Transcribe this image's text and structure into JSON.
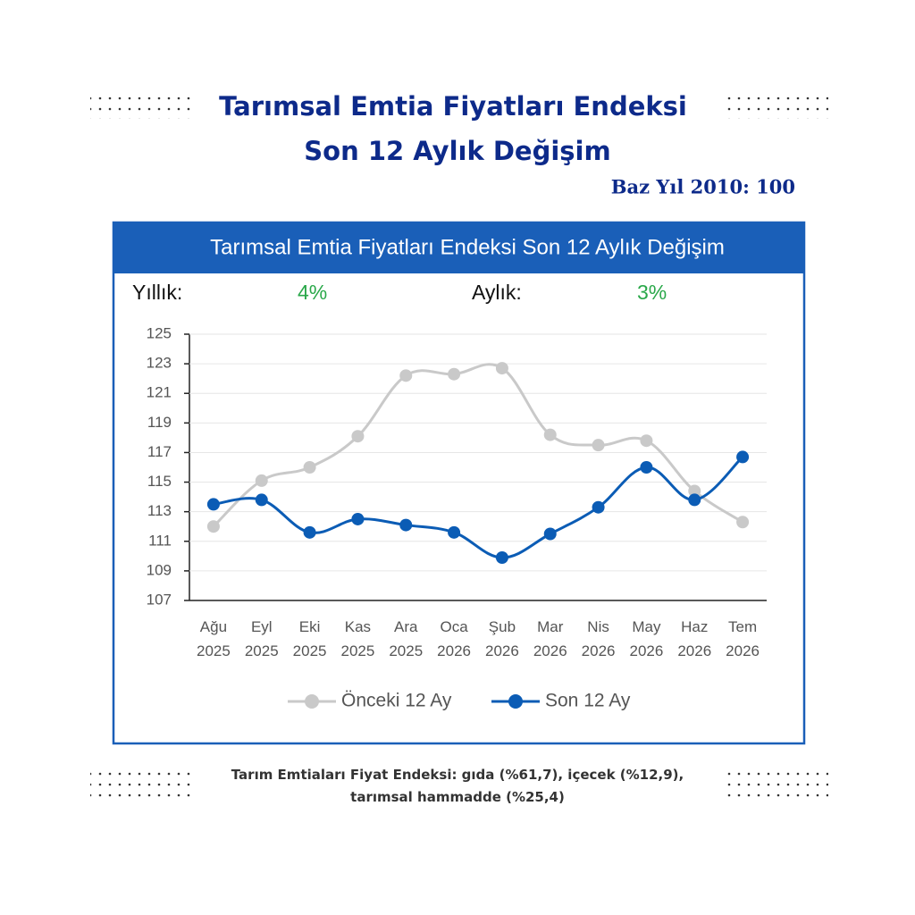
{
  "header": {
    "title_line1": "Tarımsal Emtia Fiyatları Endeksi",
    "title_line2": "Son 12 Aylık Değişim",
    "base_year": "Baz Yıl 2010: 100"
  },
  "stats": {
    "annual_label": "Yıllık:",
    "annual_value": "4%",
    "monthly_label": "Aylık:",
    "monthly_value": "3%"
  },
  "chart_data": {
    "type": "line",
    "title": "Tarımsal Emtia Fiyatları Endeksi Son 12 Aylık Değişim",
    "categories": [
      "Ağu 2025",
      "Eyl 2025",
      "Eki 2025",
      "Kas 2025",
      "Ara 2025",
      "Oca 2026",
      "Şub 2026",
      "Mar 2026",
      "Nis 2026",
      "May 2026",
      "Haz 2026",
      "Tem 2026"
    ],
    "series": [
      {
        "name": "Önceki 12 Ay",
        "color": "#c9c9c9",
        "values": [
          112.0,
          115.1,
          116.0,
          118.1,
          122.2,
          122.3,
          122.7,
          118.2,
          117.5,
          117.8,
          114.4,
          112.3
        ]
      },
      {
        "name": "Son 12 Ay",
        "color": "#0b5cb5",
        "values": [
          113.5,
          113.8,
          111.6,
          112.5,
          112.1,
          111.6,
          109.9,
          111.5,
          113.3,
          116.0,
          113.8,
          116.7
        ]
      }
    ],
    "ylim": [
      107,
      125
    ],
    "yticks": [
      107,
      109,
      111,
      113,
      115,
      117,
      119,
      121,
      123,
      125
    ],
    "grid": true,
    "legend": "bottom"
  },
  "footnote": "Tarım Emtiaları Fiyat Endeksi: gıda (%61,7), içecek (%12,9), tarımsal hammadde (%25,4)"
}
